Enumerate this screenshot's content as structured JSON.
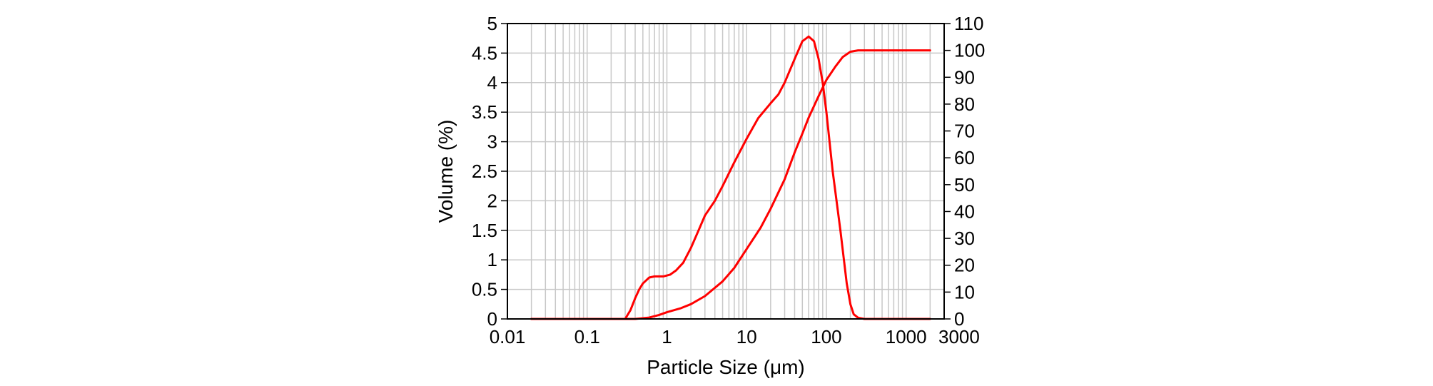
{
  "chart_data": {
    "type": "line",
    "title": "",
    "xlabel": "Particle Size (μm)",
    "ylabel_left": "Volume (%)",
    "ylabel_right": "",
    "x_scale": "log",
    "xlim": [
      0.01,
      3000
    ],
    "ylim_left": [
      0,
      5
    ],
    "ylim_right": [
      0,
      110
    ],
    "grid": true,
    "legend": "none",
    "x_tick_labels": [
      {
        "value": 0.01,
        "label": "0.01"
      },
      {
        "value": 0.1,
        "label": "0.1"
      },
      {
        "value": 1,
        "label": "1"
      },
      {
        "value": 10,
        "label": "10"
      },
      {
        "value": 100,
        "label": "100"
      },
      {
        "value": 1000,
        "label": "1000"
      },
      {
        "value": 3000,
        "label": "3000"
      }
    ],
    "y_left_tick_labels": [
      {
        "value": 0,
        "label": "0"
      },
      {
        "value": 0.5,
        "label": "0.5"
      },
      {
        "value": 1,
        "label": "1"
      },
      {
        "value": 1.5,
        "label": "1.5"
      },
      {
        "value": 2,
        "label": "2"
      },
      {
        "value": 2.5,
        "label": "2.5"
      },
      {
        "value": 3,
        "label": "3"
      },
      {
        "value": 3.5,
        "label": "3.5"
      },
      {
        "value": 4,
        "label": "4"
      },
      {
        "value": 4.5,
        "label": "4.5"
      },
      {
        "value": 5,
        "label": "5"
      }
    ],
    "y_right_tick_labels": [
      {
        "value": 0,
        "label": "0"
      },
      {
        "value": 10,
        "label": "10"
      },
      {
        "value": 20,
        "label": "20"
      },
      {
        "value": 30,
        "label": "30"
      },
      {
        "value": 40,
        "label": "40"
      },
      {
        "value": 50,
        "label": "50"
      },
      {
        "value": 60,
        "label": "60"
      },
      {
        "value": 70,
        "label": "70"
      },
      {
        "value": 80,
        "label": "80"
      },
      {
        "value": 90,
        "label": "90"
      },
      {
        "value": 100,
        "label": "100"
      },
      {
        "value": 110,
        "label": "110"
      }
    ],
    "series": [
      {
        "axis": "left",
        "color": "#ff0000",
        "points": [
          [
            0.02,
            0
          ],
          [
            0.3,
            0
          ],
          [
            0.35,
            0.15
          ],
          [
            0.4,
            0.35
          ],
          [
            0.45,
            0.5
          ],
          [
            0.5,
            0.6
          ],
          [
            0.6,
            0.7
          ],
          [
            0.7,
            0.72
          ],
          [
            0.9,
            0.72
          ],
          [
            1.1,
            0.75
          ],
          [
            1.3,
            0.82
          ],
          [
            1.6,
            0.95
          ],
          [
            2,
            1.2
          ],
          [
            2.5,
            1.5
          ],
          [
            3,
            1.75
          ],
          [
            4,
            2.0
          ],
          [
            5,
            2.25
          ],
          [
            7,
            2.65
          ],
          [
            10,
            3.05
          ],
          [
            14,
            3.4
          ],
          [
            20,
            3.65
          ],
          [
            25,
            3.8
          ],
          [
            30,
            4.0
          ],
          [
            40,
            4.4
          ],
          [
            50,
            4.7
          ],
          [
            60,
            4.78
          ],
          [
            70,
            4.7
          ],
          [
            80,
            4.4
          ],
          [
            90,
            4.0
          ],
          [
            100,
            3.5
          ],
          [
            120,
            2.5
          ],
          [
            150,
            1.5
          ],
          [
            180,
            0.6
          ],
          [
            200,
            0.25
          ],
          [
            220,
            0.08
          ],
          [
            250,
            0.02
          ],
          [
            300,
            0
          ],
          [
            2000,
            0
          ]
        ]
      },
      {
        "axis": "right",
        "color": "#ff0000",
        "points": [
          [
            0.02,
            0
          ],
          [
            0.4,
            0
          ],
          [
            0.6,
            0.5
          ],
          [
            0.8,
            1.5
          ],
          [
            1,
            2.5
          ],
          [
            1.5,
            4
          ],
          [
            2,
            5.5
          ],
          [
            3,
            8.5
          ],
          [
            5,
            14
          ],
          [
            7,
            19
          ],
          [
            10,
            26
          ],
          [
            15,
            34
          ],
          [
            20,
            41
          ],
          [
            30,
            52
          ],
          [
            40,
            62
          ],
          [
            50,
            69
          ],
          [
            60,
            75
          ],
          [
            80,
            83
          ],
          [
            100,
            89
          ],
          [
            130,
            94
          ],
          [
            160,
            97.5
          ],
          [
            200,
            99.5
          ],
          [
            250,
            100
          ],
          [
            2000,
            100
          ]
        ]
      }
    ]
  }
}
